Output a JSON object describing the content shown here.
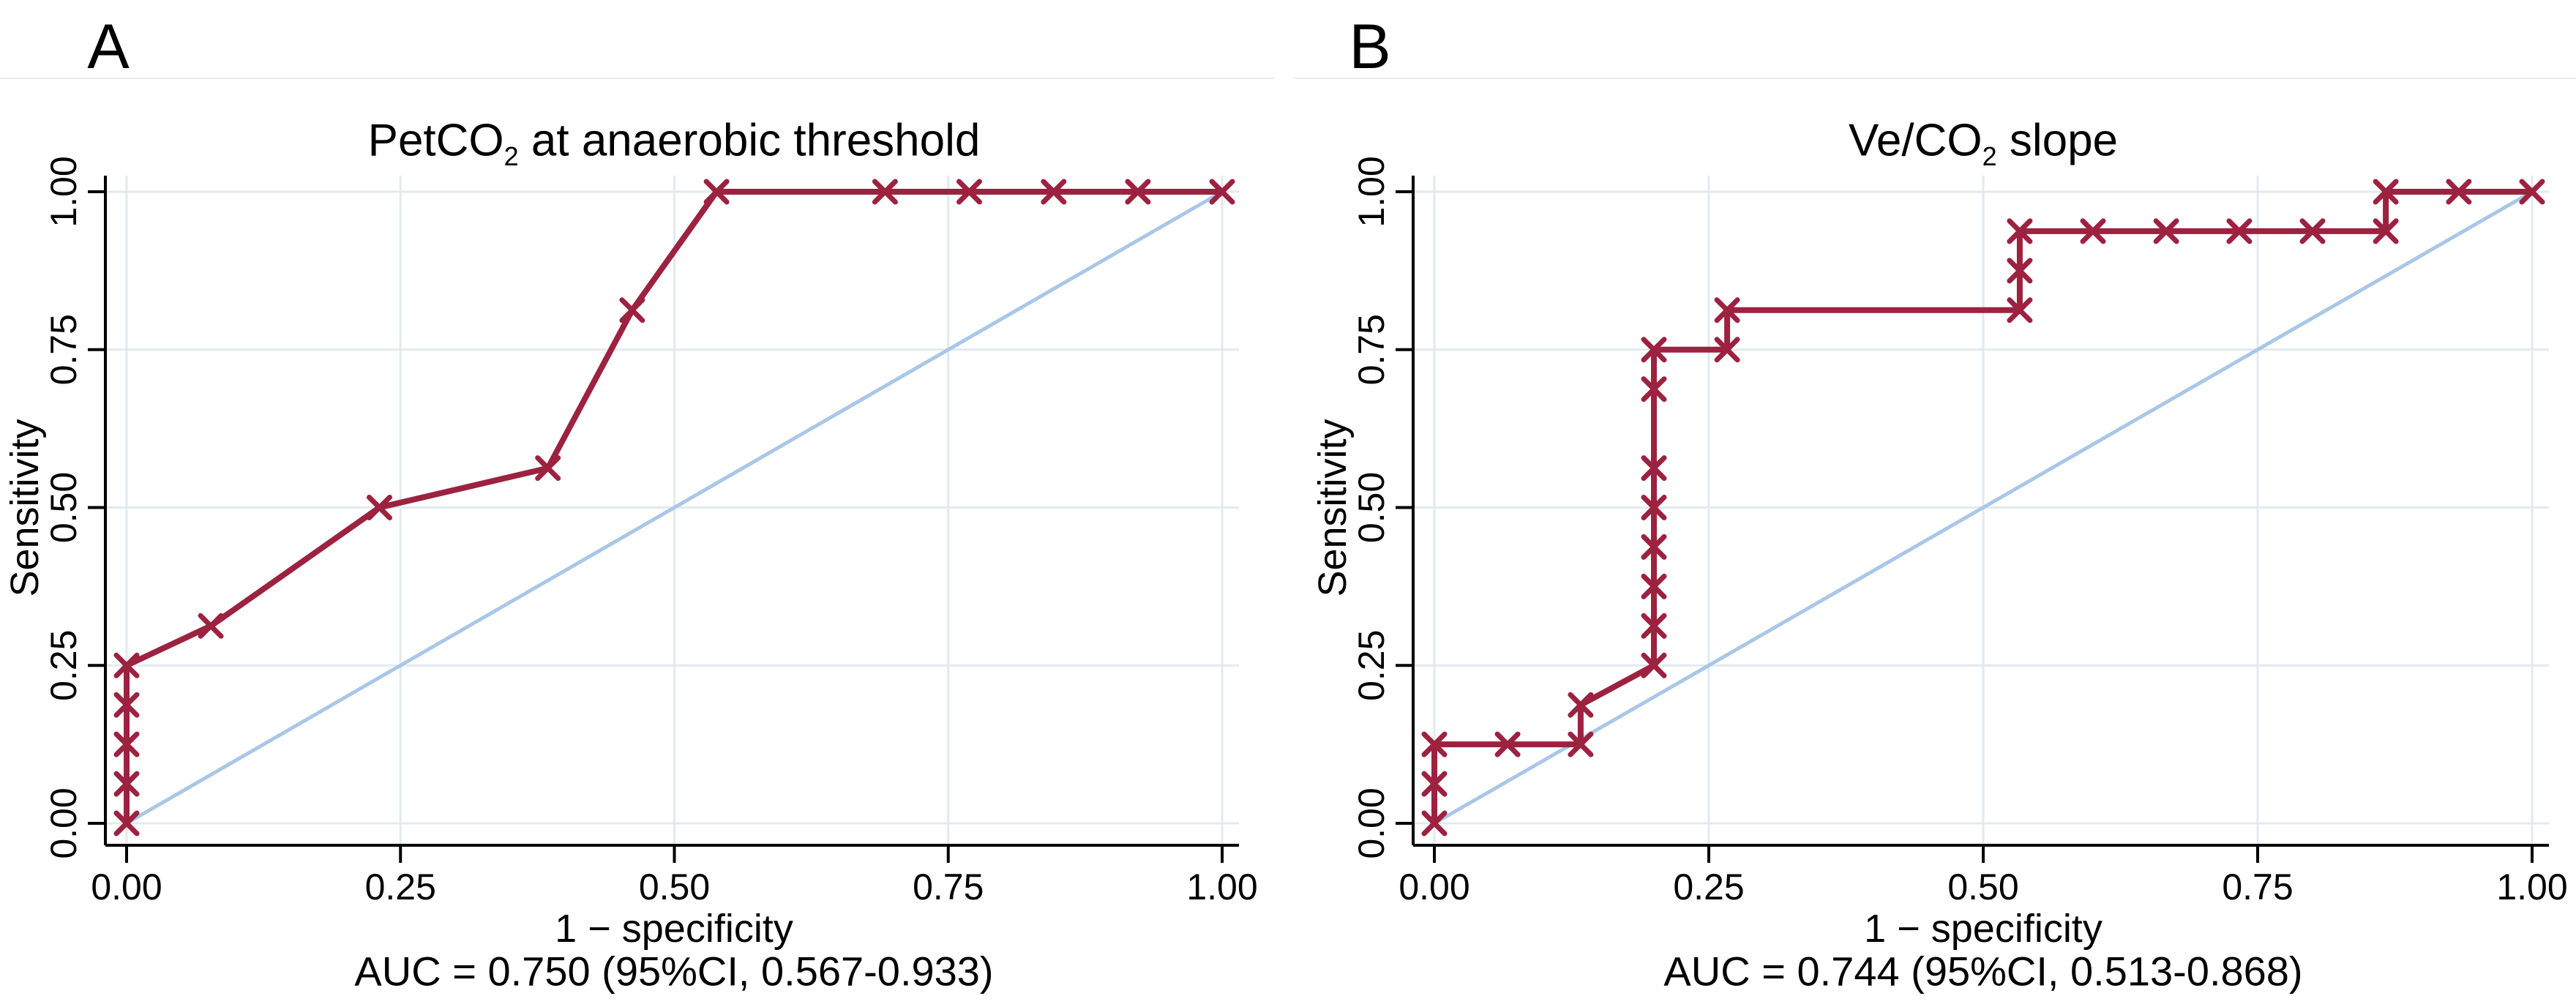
{
  "figure": {
    "background": "#ffffff",
    "colors": {
      "roc_line": "#9c2240",
      "reference_line": "#a9c7e7",
      "gridline": "#e2eaf0",
      "axis": "#000000",
      "panel_rule": "#ececec",
      "text": "#000000"
    }
  },
  "chart_data": [
    {
      "type": "line",
      "panel_letter": "A",
      "title": {
        "pre": "PetCO",
        "sub": "2",
        "post": " at anaerobic threshold"
      },
      "xlabel": "1 − specificity",
      "ylabel": "Sensitivity",
      "annotation": "AUC = 0.750 (95%CI, 0.567-0.933)",
      "auc": 0.75,
      "ci_lower": 0.567,
      "ci_upper": 0.933,
      "xlim": [
        0,
        1
      ],
      "ylim": [
        0,
        1
      ],
      "grid": true,
      "legend": "none",
      "x_ticks": [
        0,
        0.25,
        0.5,
        0.75,
        1
      ],
      "x_tick_labels": [
        "0.00",
        "0.25",
        "0.50",
        "0.75",
        "1.00"
      ],
      "y_ticks": [
        0,
        0.25,
        0.5,
        0.75,
        1
      ],
      "y_tick_labels": [
        "0.00",
        "0.25",
        "0.50",
        "0.75",
        "1.00"
      ],
      "series": [
        {
          "name": "ROC curve",
          "marker": "x",
          "points": [
            [
              0,
              0
            ],
            [
              0,
              0.0625
            ],
            [
              0,
              0.125
            ],
            [
              0,
              0.1875
            ],
            [
              0,
              0.25
            ],
            [
              0.0769,
              0.3125
            ],
            [
              0.2308,
              0.5
            ],
            [
              0.3846,
              0.5625
            ],
            [
              0.4615,
              0.8125
            ],
            [
              0.5385,
              1
            ],
            [
              0.6923,
              1
            ],
            [
              0.7692,
              1
            ],
            [
              0.8462,
              1
            ],
            [
              0.9231,
              1
            ],
            [
              1,
              1
            ]
          ]
        },
        {
          "name": "Reference line",
          "marker": "none",
          "points": [
            [
              0,
              0
            ],
            [
              1,
              1
            ]
          ]
        }
      ]
    },
    {
      "type": "line",
      "panel_letter": "B",
      "title": {
        "pre": "Ve/CO",
        "sub": "2",
        "post": " slope"
      },
      "xlabel": "1 − specificity",
      "ylabel": "Sensitivity",
      "annotation": "AUC = 0.744 (95%CI, 0.513-0.868)",
      "auc": 0.744,
      "ci_lower": 0.513,
      "ci_upper": 0.868,
      "xlim": [
        0,
        1
      ],
      "ylim": [
        0,
        1
      ],
      "grid": true,
      "legend": "none",
      "x_ticks": [
        0,
        0.25,
        0.5,
        0.75,
        1
      ],
      "x_tick_labels": [
        "0.00",
        "0.25",
        "0.50",
        "0.75",
        "1.00"
      ],
      "y_ticks": [
        0,
        0.25,
        0.5,
        0.75,
        1
      ],
      "y_tick_labels": [
        "0.00",
        "0.25",
        "0.50",
        "0.75",
        "1.00"
      ],
      "series": [
        {
          "name": "ROC curve",
          "marker": "x",
          "points": [
            [
              0,
              0
            ],
            [
              0,
              0.0625
            ],
            [
              0,
              0.125
            ],
            [
              0.0667,
              0.125
            ],
            [
              0.1333,
              0.125
            ],
            [
              0.1333,
              0.1875
            ],
            [
              0.2,
              0.25
            ],
            [
              0.2,
              0.3125
            ],
            [
              0.2,
              0.375
            ],
            [
              0.2,
              0.4375
            ],
            [
              0.2,
              0.5
            ],
            [
              0.2,
              0.5625
            ],
            [
              0.2,
              0.6875
            ],
            [
              0.2,
              0.75
            ],
            [
              0.2667,
              0.75
            ],
            [
              0.2667,
              0.8125
            ],
            [
              0.5333,
              0.8125
            ],
            [
              0.5333,
              0.875
            ],
            [
              0.5333,
              0.9375
            ],
            [
              0.6,
              0.9375
            ],
            [
              0.6667,
              0.9375
            ],
            [
              0.7333,
              0.9375
            ],
            [
              0.8,
              0.9375
            ],
            [
              0.8667,
              0.9375
            ],
            [
              0.8667,
              1
            ],
            [
              0.9333,
              1
            ],
            [
              1,
              1
            ]
          ]
        },
        {
          "name": "Reference line",
          "marker": "none",
          "points": [
            [
              0,
              0
            ],
            [
              1,
              1
            ]
          ]
        }
      ]
    }
  ]
}
